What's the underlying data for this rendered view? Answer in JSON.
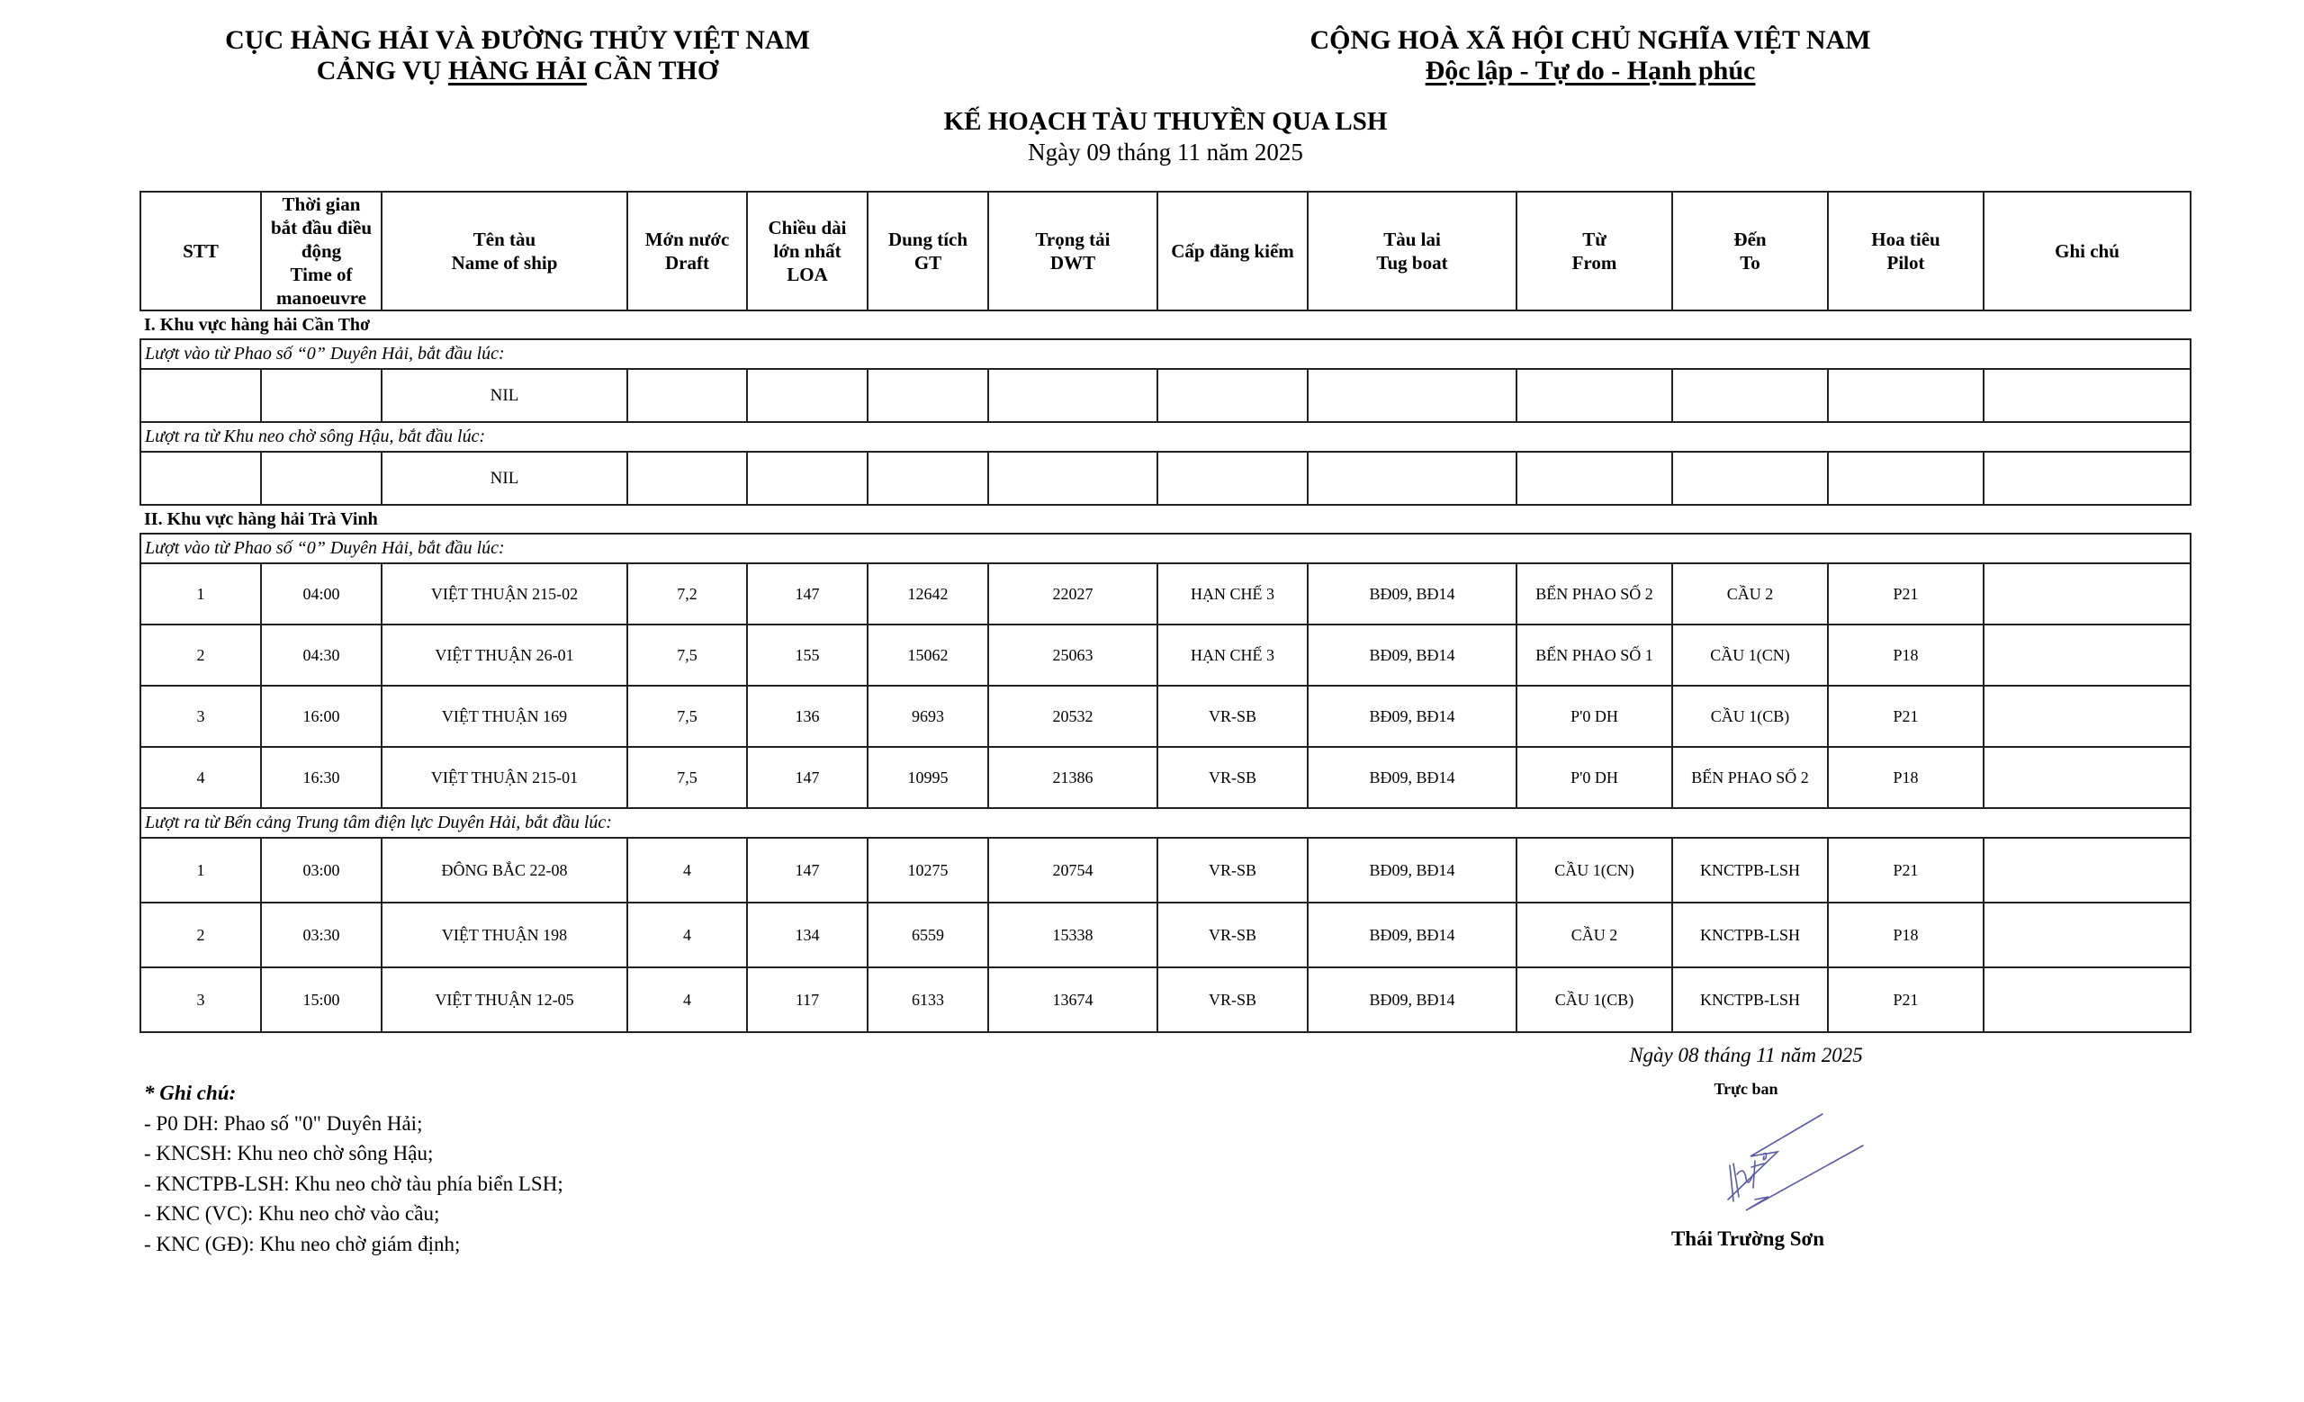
{
  "header": {
    "org_line1": "CỤC HÀNG HẢI VÀ ĐƯỜNG THỦY VIỆT NAM",
    "org_line2_pre": "CẢNG VỤ ",
    "org_line2_ul": "HÀNG HẢI",
    "org_line2_post": " CẦN THƠ",
    "nation_line1": "CỘNG HOÀ XÃ HỘI CHỦ NGHĨA VIỆT NAM",
    "nation_line2": "Độc lập - Tự do - Hạnh phúc"
  },
  "title": "KẾ HOẠCH TÀU THUYỀN QUA LSH",
  "date": "Ngày 09 tháng 11 năm 2025",
  "table": {
    "columns": [
      [
        "STT"
      ],
      [
        "Thời gian",
        "bắt đầu điều",
        "động",
        "Time of",
        "manoeuvre"
      ],
      [
        "Tên tàu",
        "Name of ship"
      ],
      [
        "Mớn nước",
        "Draft"
      ],
      [
        "Chiều dài",
        "lớn nhất",
        "LOA"
      ],
      [
        "Dung tích",
        "GT"
      ],
      [
        "Trọng tải",
        "DWT"
      ],
      [
        "Cấp đăng kiểm"
      ],
      [
        "Tàu lai",
        "Tug boat"
      ],
      [
        "Từ",
        "From"
      ],
      [
        "Đến",
        "To"
      ],
      [
        "Hoa tiêu",
        "Pilot"
      ],
      [
        "Ghi chú"
      ]
    ],
    "sections": [
      {
        "title": "I. Khu vực hàng hải Cần Thơ",
        "groups": [
          {
            "label": "Lượt vào từ Phao số “0” Duyên Hải, bắt đầu lúc:",
            "kind": "nil",
            "rows": [
              [
                "",
                "",
                "NIL",
                "",
                "",
                "",
                "",
                "",
                "",
                "",
                "",
                "",
                ""
              ]
            ]
          },
          {
            "label": "Lượt ra từ Khu neo chờ sông Hậu, bắt đầu lúc:",
            "kind": "nil",
            "rows": [
              [
                "",
                "",
                "NIL",
                "",
                "",
                "",
                "",
                "",
                "",
                "",
                "",
                "",
                ""
              ]
            ]
          }
        ]
      },
      {
        "title": "II. Khu vực hàng hải Trà Vinh",
        "groups": [
          {
            "label": "Lượt vào từ Phao số “0” Duyên Hải, bắt đầu lúc:",
            "kind": "inrow",
            "rows": [
              [
                "1",
                "04:00",
                "VIỆT THUẬN 215-02",
                "7,2",
                "147",
                "12642",
                "22027",
                "HẠN CHẾ 3",
                "BĐ09, BĐ14",
                "BẾN PHAO SỐ 2",
                "CẦU 2",
                "P21",
                ""
              ],
              [
                "2",
                "04:30",
                "VIỆT THUẬN 26-01",
                "7,5",
                "155",
                "15062",
                "25063",
                "HẠN CHẾ 3",
                "BĐ09, BĐ14",
                "BẾN PHAO SỐ 1",
                "CẦU 1(CN)",
                "P18",
                ""
              ],
              [
                "3",
                "16:00",
                "VIỆT THUẬN 169",
                "7,5",
                "136",
                "9693",
                "20532",
                "VR-SB",
                "BĐ09, BĐ14",
                "P'0 DH",
                "CẦU 1(CB)",
                "P21",
                ""
              ],
              [
                "4",
                "16:30",
                "VIỆT THUẬN 215-01",
                "7,5",
                "147",
                "10995",
                "21386",
                "VR-SB",
                "BĐ09, BĐ14",
                "P'0 DH",
                "BẾN PHAO SỐ 2",
                "P18",
                ""
              ]
            ]
          },
          {
            "label": "Lượt ra từ Bến cảng Trung tâm điện lực Duyên Hải, bắt đầu lúc:",
            "kind": "outrow",
            "rows": [
              [
                "1",
                "03:00",
                "ĐÔNG BẮC 22-08",
                "4",
                "147",
                "10275",
                "20754",
                "VR-SB",
                "BĐ09, BĐ14",
                "CẦU 1(CN)",
                "KNCTPB-LSH",
                "P21",
                ""
              ],
              [
                "2",
                "03:30",
                "VIỆT THUẬN 198",
                "4",
                "134",
                "6559",
                "15338",
                "VR-SB",
                "BĐ09, BĐ14",
                "CẦU 2",
                "KNCTPB-LSH",
                "P18",
                ""
              ],
              [
                "3",
                "15:00",
                "VIỆT THUẬN 12-05",
                "4",
                "117",
                "6133",
                "13674",
                "VR-SB",
                "BĐ09, BĐ14",
                "CẦU 1(CB)",
                "KNCTPB-LSH",
                "P21",
                ""
              ]
            ]
          }
        ]
      }
    ]
  },
  "notes": {
    "title": "* Ghi chú:",
    "items": [
      "- P0 DH: Phao số \"0\" Duyên Hải;",
      "- KNCSH: Khu neo chờ sông Hậu;",
      "- KNCTPB-LSH: Khu neo chờ tàu phía biển LSH;",
      "- KNC (VC): Khu neo chờ vào cầu;",
      "- KNC (GĐ): Khu neo chờ giám định;"
    ]
  },
  "signature": {
    "date": "Ngày 08 tháng 11 năm 2025",
    "role": "Trực ban",
    "name": "Thái Trường Sơn",
    "ink_color": "#5a5aa0"
  }
}
